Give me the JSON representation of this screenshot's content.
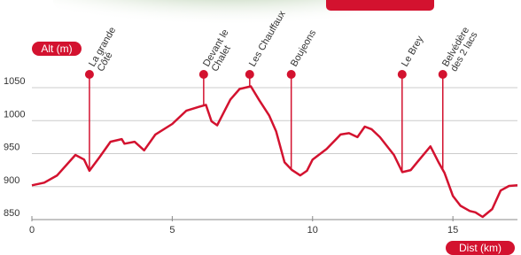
{
  "chart_data": {
    "type": "line",
    "y_label": "Alt (m)",
    "x_label": "Dist (km)",
    "color": "#d3122f",
    "x": [
      0,
      0.44,
      0.9,
      1.55,
      1.86,
      2.05,
      2.4,
      2.8,
      3.2,
      3.3,
      3.66,
      4.0,
      4.4,
      5.0,
      5.5,
      5.96,
      6.2,
      6.4,
      6.6,
      7.07,
      7.4,
      7.8,
      8.1,
      8.45,
      8.7,
      9.0,
      9.27,
      9.56,
      9.8,
      10.0,
      10.5,
      11.0,
      11.3,
      11.6,
      11.86,
      12.1,
      12.4,
      12.9,
      13.2,
      13.5,
      13.75,
      14.2,
      14.5,
      14.7,
      15.0,
      15.27,
      15.6,
      15.8,
      16.06,
      16.4,
      16.7,
      17.0,
      17.3
    ],
    "values": [
      902,
      906,
      917,
      948,
      941,
      924,
      944,
      968,
      972,
      965,
      968,
      955,
      979,
      995,
      1015,
      1021,
      1024,
      999,
      993,
      1032,
      1048,
      1052,
      1031,
      1008,
      984,
      937,
      925,
      917,
      924,
      941,
      957,
      979,
      981,
      975,
      991,
      987,
      975,
      948,
      922,
      925,
      938,
      961,
      936,
      921,
      886,
      871,
      863,
      861,
      854,
      866,
      894,
      901,
      902
    ],
    "xlim": [
      0,
      17.3
    ],
    "ylim": [
      850,
      1050
    ],
    "xticks": [
      0,
      5,
      10,
      15
    ],
    "yticks": [
      850,
      900,
      950,
      1000,
      1050
    ],
    "grid": true,
    "annotations": [
      {
        "label_lines": [
          "La grande",
          "Côté"
        ],
        "x": 2.05
      },
      {
        "label_lines": [
          "Devant le",
          "Chalet"
        ],
        "x": 6.12
      },
      {
        "label_lines": [
          "Les Chauffaux"
        ],
        "x": 7.76
      },
      {
        "label_lines": [
          "Boujeons"
        ],
        "x": 9.24
      },
      {
        "label_lines": [
          "Le Brey"
        ],
        "x": 13.19
      },
      {
        "label_lines": [
          "Belvédère",
          "des 2 lacs"
        ],
        "x": 14.64
      }
    ]
  }
}
